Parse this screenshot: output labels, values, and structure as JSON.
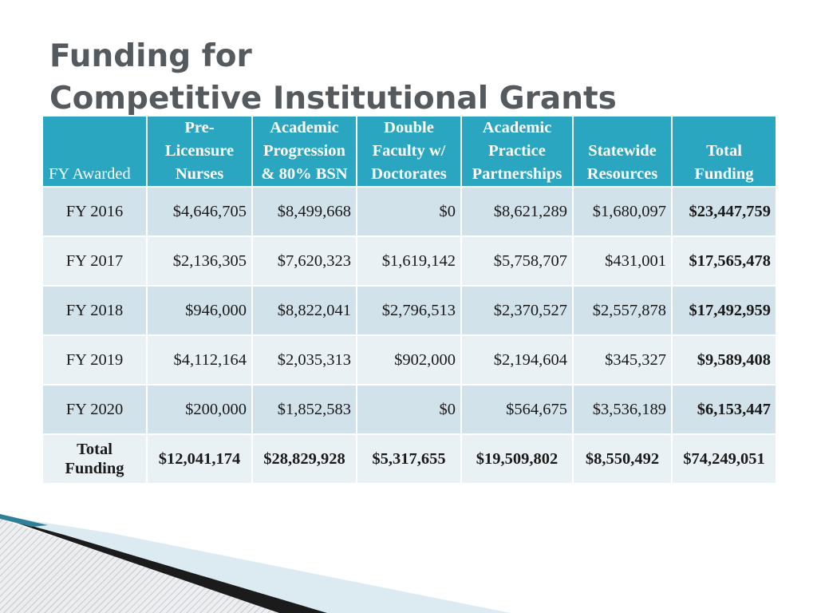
{
  "slide": {
    "title_lines": [
      "Funding for",
      "Competitive Institutional Grants"
    ]
  },
  "table": {
    "header": {
      "fy_awarded": "FY Awarded",
      "columns": [
        [
          "Pre-",
          "Licensure",
          "Nurses"
        ],
        [
          "Academic",
          "Progression",
          "& 80% BSN"
        ],
        [
          "Double",
          "Faculty w/",
          "Doctorates"
        ],
        [
          "Academic",
          "Practice",
          "Partnerships"
        ],
        [
          "Statewide",
          "Resources"
        ],
        [
          "Total",
          "Funding"
        ]
      ]
    },
    "rows": [
      {
        "year": "FY 2016",
        "values": [
          "$4,646,705",
          "$8,499,668",
          "$0",
          "$8,621,289",
          "$1,680,097"
        ],
        "total": "$23,447,759"
      },
      {
        "year": "FY 2017",
        "values": [
          "$2,136,305",
          "$7,620,323",
          "$1,619,142",
          "$5,758,707",
          "$431,001"
        ],
        "total": "$17,565,478"
      },
      {
        "year": "FY 2018",
        "values": [
          "$946,000",
          "$8,822,041",
          "$2,796,513",
          "$2,370,527",
          "$2,557,878"
        ],
        "total": "$17,492,959"
      },
      {
        "year": "FY 2019",
        "values": [
          "$4,112,164",
          "$2,035,313",
          "$902,000",
          "$2,194,604",
          "$345,327"
        ],
        "total": "$9,589,408"
      },
      {
        "year": "FY 2020",
        "values": [
          "$200,000",
          "$1,852,583",
          "$0",
          "$564,675",
          "$3,536,189"
        ],
        "total": "$6,153,447"
      }
    ],
    "total_row": {
      "label_lines": [
        "Total",
        "Funding"
      ],
      "values": [
        "$12,041,174",
        "$28,829,928",
        "$5,317,655",
        "$19,509,802",
        "$8,550,492"
      ],
      "total": "$74,249,051"
    }
  },
  "colors": {
    "header_bg": "#2aa6c1",
    "row_dark": "#d2e2ea",
    "row_light": "#e9f1f5",
    "title": "#555a5f"
  }
}
